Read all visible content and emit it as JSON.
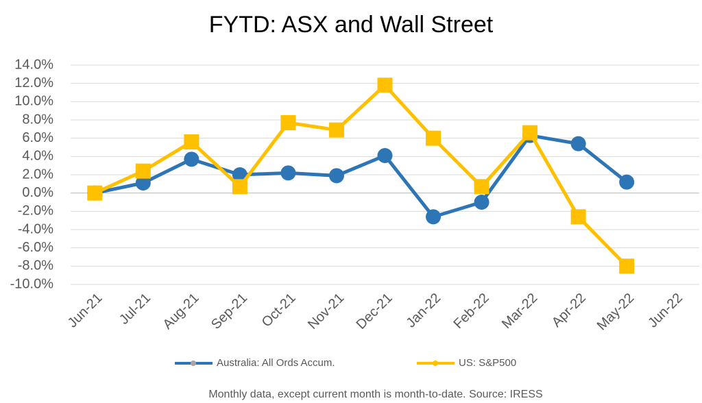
{
  "chart_data": {
    "type": "line",
    "title": "FYTD: ASX and Wall Street",
    "caption": "Monthly data, except current month is month-to-date.  Source: IRESS",
    "categories": [
      "Jun-21",
      "Jul-21",
      "Aug-21",
      "Sep-21",
      "Oct-21",
      "Nov-21",
      "Dec-21",
      "Jan-22",
      "Feb-22",
      "Mar-22",
      "Apr-22",
      "May-22",
      "Jun-22"
    ],
    "series": [
      {
        "name": "Australia: All Ords Accum.",
        "color": "#2e75b6",
        "marker": "circle",
        "values": [
          0,
          1.1,
          3.7,
          2.0,
          2.2,
          1.9,
          4.1,
          -2.6,
          -1.0,
          6.3,
          5.4,
          1.2,
          null
        ]
      },
      {
        "name": "US: S&P500",
        "color": "#ffc000",
        "marker": "square",
        "values": [
          0,
          2.4,
          5.6,
          0.7,
          7.7,
          6.9,
          11.8,
          6.0,
          0.7,
          6.6,
          -2.6,
          -8.0,
          null
        ]
      }
    ],
    "ylim": [
      -10,
      14
    ],
    "yticks": [
      {
        "value": -10,
        "label": "-10.0%"
      },
      {
        "value": -8,
        "label": "-8.0%"
      },
      {
        "value": -6,
        "label": "-6.0%"
      },
      {
        "value": -4,
        "label": "-4.0%"
      },
      {
        "value": -2,
        "label": "-2.0%"
      },
      {
        "value": 0,
        "label": "0.0%"
      },
      {
        "value": 2,
        "label": "2.0%"
      },
      {
        "value": 4,
        "label": "4.0%"
      },
      {
        "value": 6,
        "label": "6.0%"
      },
      {
        "value": 8,
        "label": "8.0%"
      },
      {
        "value": 10,
        "label": "10.0%"
      },
      {
        "value": 12,
        "label": "12.0%"
      },
      {
        "value": 14,
        "label": "14.0%"
      }
    ],
    "grid": true,
    "legend": "bottom"
  }
}
